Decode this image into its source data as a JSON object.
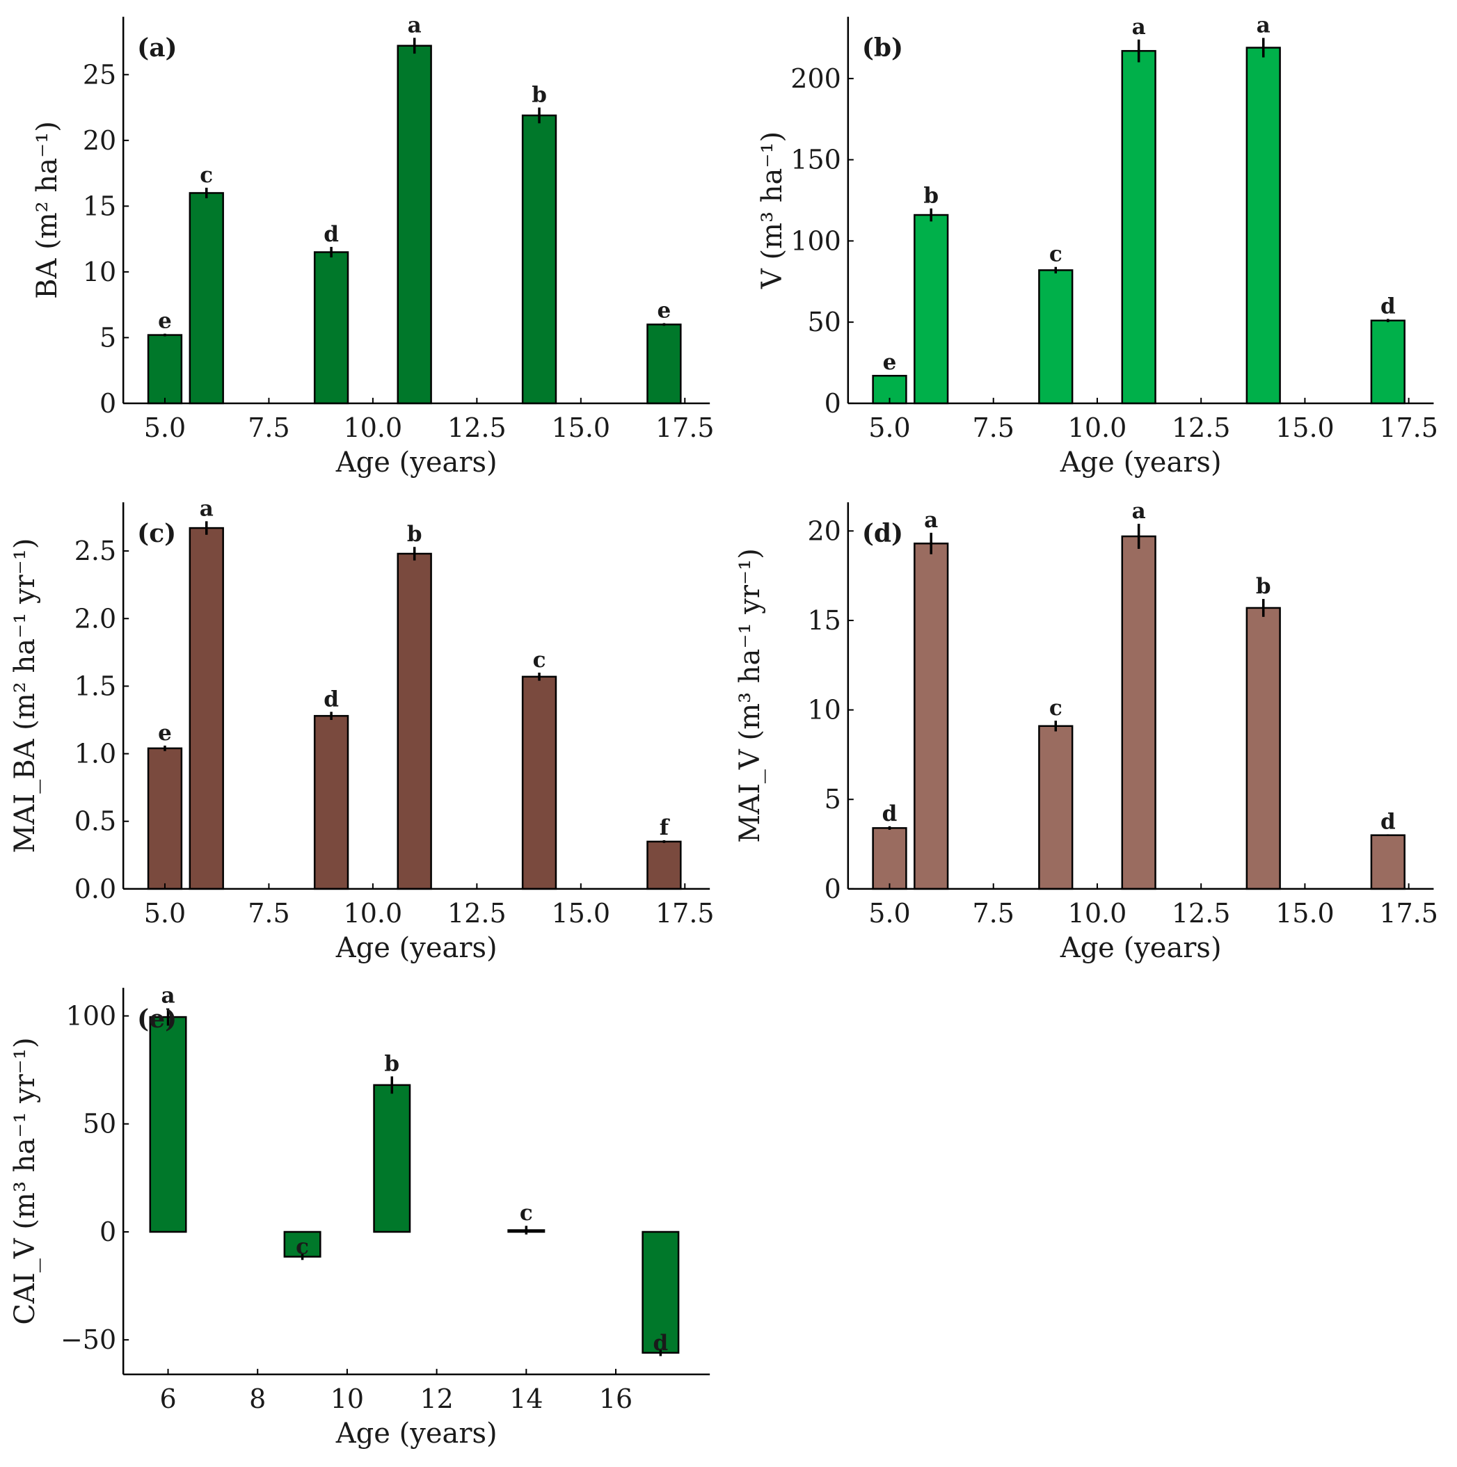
{
  "colors": {
    "dark_green": "#00782a",
    "bright_green": "#00b04a",
    "dark_brown": "#7a4a3e",
    "light_brown": "#9a6c60"
  },
  "chart_data": [
    {
      "id": "a",
      "type": "bar",
      "panel_label": "(a)",
      "xlabel": "Age (years)",
      "ylabel": "BA (m² ha⁻¹)",
      "color": "#00782a",
      "xlim": [
        4.0,
        18.1
      ],
      "ylim": [
        0,
        29.4
      ],
      "xticks": [
        5.0,
        7.5,
        10.0,
        12.5,
        15.0,
        17.5
      ],
      "xtick_labels": [
        "5.0",
        "7.5",
        "10.0",
        "12.5",
        "15.0",
        "17.5"
      ],
      "yticks": [
        0,
        5,
        10,
        15,
        20,
        25
      ],
      "ytick_labels": [
        "0",
        "5",
        "10",
        "15",
        "20",
        "25"
      ],
      "bar_width": 0.8,
      "x": [
        5,
        6,
        9,
        11,
        14,
        17
      ],
      "values": [
        5.2,
        16.0,
        11.5,
        27.2,
        21.9,
        6.0
      ],
      "errors": [
        0.1,
        0.4,
        0.4,
        0.6,
        0.6,
        0.1
      ],
      "sig_letters": [
        "e",
        "c",
        "d",
        "a",
        "b",
        "e"
      ]
    },
    {
      "id": "b",
      "type": "bar",
      "panel_label": "(b)",
      "xlabel": "Age (years)",
      "ylabel": "V (m³ ha⁻¹)",
      "color": "#00b04a",
      "xlim": [
        4.0,
        18.1
      ],
      "ylim": [
        0,
        238
      ],
      "xticks": [
        5.0,
        7.5,
        10.0,
        12.5,
        15.0,
        17.5
      ],
      "xtick_labels": [
        "5.0",
        "7.5",
        "10.0",
        "12.5",
        "15.0",
        "17.5"
      ],
      "yticks": [
        0,
        50,
        100,
        150,
        200
      ],
      "ytick_labels": [
        "0",
        "50",
        "100",
        "150",
        "200"
      ],
      "bar_width": 0.8,
      "x": [
        5,
        6,
        9,
        11,
        14,
        17
      ],
      "values": [
        17,
        116,
        82,
        217,
        219,
        51
      ],
      "errors": [
        0.5,
        4,
        2,
        7,
        6,
        1
      ],
      "sig_letters": [
        "e",
        "b",
        "c",
        "a",
        "a",
        "d"
      ]
    },
    {
      "id": "c",
      "type": "bar",
      "panel_label": "(c)",
      "xlabel": "Age (years)",
      "ylabel": "MAI_BA (m² ha⁻¹ yr⁻¹)",
      "color": "#7a4a3e",
      "xlim": [
        4.0,
        18.1
      ],
      "ylim": [
        0,
        2.86
      ],
      "xticks": [
        5.0,
        7.5,
        10.0,
        12.5,
        15.0,
        17.5
      ],
      "xtick_labels": [
        "5.0",
        "7.5",
        "10.0",
        "12.5",
        "15.0",
        "17.5"
      ],
      "yticks": [
        0.0,
        0.5,
        1.0,
        1.5,
        2.0,
        2.5
      ],
      "ytick_labels": [
        "0.0",
        "0.5",
        "1.0",
        "1.5",
        "2.0",
        "2.5"
      ],
      "bar_width": 0.8,
      "x": [
        5,
        6,
        9,
        11,
        14,
        17
      ],
      "values": [
        1.04,
        2.67,
        1.28,
        2.48,
        1.57,
        0.35
      ],
      "errors": [
        0.02,
        0.05,
        0.03,
        0.05,
        0.03,
        0.01
      ],
      "sig_letters": [
        "e",
        "a",
        "d",
        "b",
        "c",
        "f"
      ]
    },
    {
      "id": "d",
      "type": "bar",
      "panel_label": "(d)",
      "xlabel": "Age (years)",
      "ylabel": "MAI_V (m³ ha⁻¹ yr⁻¹)",
      "color": "#9a6c60",
      "xlim": [
        4.0,
        18.1
      ],
      "ylim": [
        0,
        21.6
      ],
      "xticks": [
        5.0,
        7.5,
        10.0,
        12.5,
        15.0,
        17.5
      ],
      "xtick_labels": [
        "5.0",
        "7.5",
        "10.0",
        "12.5",
        "15.0",
        "17.5"
      ],
      "yticks": [
        0,
        5,
        10,
        15,
        20
      ],
      "ytick_labels": [
        "0",
        "5",
        "10",
        "15",
        "20"
      ],
      "bar_width": 0.8,
      "x": [
        5,
        6,
        9,
        11,
        14,
        17
      ],
      "values": [
        3.4,
        19.3,
        9.1,
        19.7,
        15.7,
        3.0
      ],
      "errors": [
        0.1,
        0.6,
        0.3,
        0.7,
        0.5,
        0.05
      ],
      "sig_letters": [
        "d",
        "a",
        "c",
        "a",
        "b",
        "d"
      ]
    },
    {
      "id": "e",
      "type": "bar",
      "panel_label": "(e)",
      "xlabel": "Age (years)",
      "ylabel": "CAI_V (m³ ha⁻¹ yr⁻¹)",
      "color": "#00782a",
      "xlim": [
        5.0,
        18.1
      ],
      "ylim": [
        -66,
        113
      ],
      "xticks": [
        6,
        8,
        10,
        12,
        14,
        16
      ],
      "xtick_labels": [
        "6",
        "8",
        "10",
        "12",
        "14",
        "16"
      ],
      "yticks": [
        -50,
        0,
        50,
        100
      ],
      "ytick_labels": [
        "−50",
        "0",
        "50",
        "100"
      ],
      "bar_width": 0.8,
      "x": [
        6,
        9,
        11,
        14,
        17
      ],
      "values": [
        99.5,
        -11.5,
        68,
        0.8,
        -56
      ],
      "errors": [
        4,
        1.5,
        4,
        2,
        1.5
      ],
      "sig_letters": [
        "a",
        "c",
        "b",
        "c",
        "d"
      ]
    }
  ]
}
